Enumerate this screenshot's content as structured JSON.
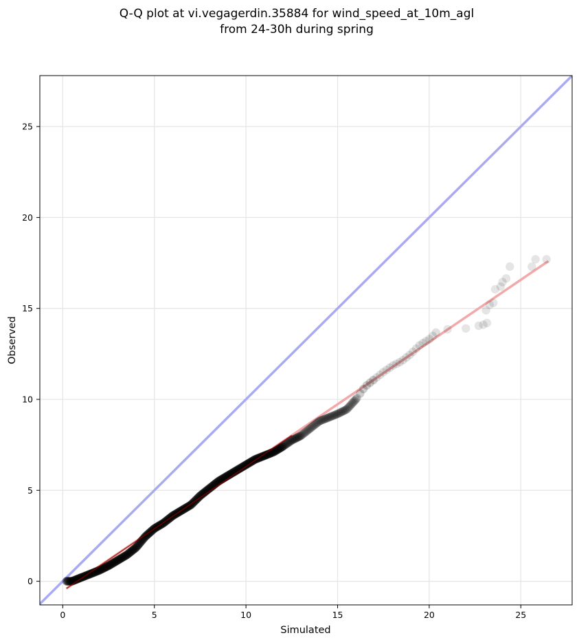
{
  "chart_data": {
    "type": "scatter",
    "title_lines": [
      "Q-Q plot at vi.vegagerdin.35884 for wind_speed_at_10m_agl",
      "from 24-30h during spring"
    ],
    "xlabel": "Simulated",
    "ylabel": "Observed",
    "xlim": [
      -1.25,
      27.8
    ],
    "ylim": [
      -1.3,
      27.8
    ],
    "xticks": [
      0,
      5,
      10,
      15,
      20,
      25
    ],
    "yticks": [
      0,
      5,
      10,
      15,
      20,
      25
    ],
    "grid": true,
    "colors": {
      "points": "#000000",
      "identity_line": "#aaaaf2",
      "fit_line": "#f2a9a9",
      "fit_line_dense": "#8b0000"
    },
    "identity_line": [
      [
        -1.25,
        -1.25
      ],
      [
        27.8,
        27.8
      ]
    ],
    "fit_line": [
      [
        0.2,
        -0.4
      ],
      [
        26.5,
        17.6
      ]
    ],
    "quantile_curve": [
      [
        0.2,
        0.0
      ],
      [
        0.5,
        0.0
      ],
      [
        1.0,
        0.2
      ],
      [
        1.5,
        0.4
      ],
      [
        2.0,
        0.6
      ],
      [
        2.5,
        0.85
      ],
      [
        3.0,
        1.15
      ],
      [
        3.5,
        1.45
      ],
      [
        4.0,
        1.85
      ],
      [
        4.5,
        2.45
      ],
      [
        5.0,
        2.9
      ],
      [
        5.5,
        3.2
      ],
      [
        6.0,
        3.6
      ],
      [
        6.5,
        3.9
      ],
      [
        7.0,
        4.2
      ],
      [
        7.5,
        4.7
      ],
      [
        8.0,
        5.1
      ],
      [
        8.5,
        5.5
      ],
      [
        9.0,
        5.8
      ],
      [
        9.5,
        6.1
      ],
      [
        10.0,
        6.4
      ],
      [
        10.5,
        6.7
      ],
      [
        11.0,
        6.9
      ],
      [
        11.5,
        7.1
      ],
      [
        12.0,
        7.4
      ],
      [
        12.5,
        7.75
      ],
      [
        13.0,
        8.0
      ],
      [
        13.5,
        8.4
      ],
      [
        14.0,
        8.8
      ],
      [
        14.5,
        9.0
      ],
      [
        15.0,
        9.2
      ],
      [
        15.5,
        9.45
      ],
      [
        16.0,
        10.0
      ],
      [
        16.5,
        10.7
      ],
      [
        17.0,
        11.1
      ],
      [
        17.5,
        11.5
      ],
      [
        18.0,
        11.85
      ],
      [
        18.5,
        12.1
      ],
      [
        19.0,
        12.5
      ],
      [
        19.5,
        13.0
      ],
      [
        20.0,
        13.3
      ],
      [
        20.5,
        13.8
      ]
    ],
    "tail_points": [
      [
        21.0,
        13.85
      ],
      [
        22.0,
        13.9
      ],
      [
        22.7,
        14.05
      ],
      [
        22.95,
        14.1
      ],
      [
        23.15,
        14.2
      ],
      [
        23.1,
        14.9
      ],
      [
        23.3,
        15.2
      ],
      [
        23.5,
        15.3
      ],
      [
        23.6,
        16.05
      ],
      [
        23.9,
        16.2
      ],
      [
        24.0,
        16.45
      ],
      [
        24.2,
        16.65
      ],
      [
        24.4,
        17.3
      ],
      [
        25.6,
        17.3
      ],
      [
        25.8,
        17.7
      ],
      [
        26.4,
        17.7
      ]
    ]
  }
}
